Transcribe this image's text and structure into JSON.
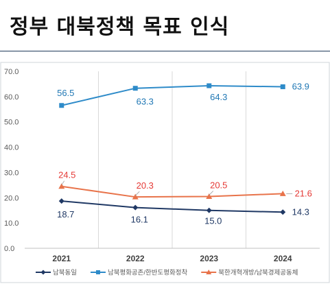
{
  "page": {
    "title": "정부 대북정책 목표 인식"
  },
  "chart_data": {
    "type": "line",
    "title": "",
    "xlabel": "",
    "ylabel": "",
    "categories": [
      "2021",
      "2022",
      "2023",
      "2024"
    ],
    "ylim": [
      0,
      70
    ],
    "yticks": [
      "0.0",
      "10.0",
      "20.0",
      "30.0",
      "40.0",
      "50.0",
      "60.0",
      "70.0"
    ],
    "grid": "vertical",
    "legend_position": "bottom",
    "series": [
      {
        "name": "남북동일",
        "values": [
          18.7,
          16.1,
          15.0,
          14.3
        ],
        "labels": [
          "18.7",
          "16.1",
          "15.0",
          "14.3"
        ],
        "color": "#1f3864",
        "label_color": "#1f3864",
        "marker": "diamond"
      },
      {
        "name": "남북평화공존/한반도평화정착",
        "values": [
          56.5,
          63.3,
          64.3,
          63.9
        ],
        "labels": [
          "56.5",
          "63.3",
          "64.3",
          "63.9"
        ],
        "color": "#2e8bc9",
        "label_color": "#1f77b4",
        "marker": "square"
      },
      {
        "name": "북한개혁개방/남북경제공동체",
        "values": [
          24.5,
          20.3,
          20.5,
          21.6
        ],
        "labels": [
          "24.5",
          "20.3",
          "20.5",
          "21.6"
        ],
        "color": "#e8734a",
        "label_color": "#e53935",
        "marker": "triangle"
      }
    ]
  }
}
